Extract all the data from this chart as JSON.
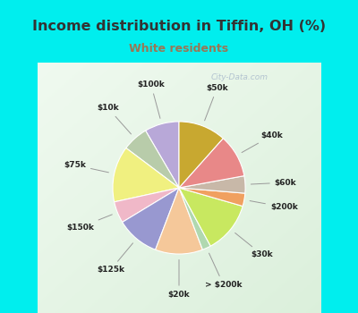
{
  "title": "Income distribution in Tiffin, OH (%)",
  "subtitle": "White residents",
  "title_color": "#333333",
  "subtitle_color": "#997755",
  "bg_cyan": "#00eeee",
  "bg_panel_color": "#d8ede0",
  "labels_cw": [
    "$100k",
    "$10k",
    "$75k",
    "$150k",
    "$125k",
    "$20k",
    "> $200k",
    "$30k",
    "$200k",
    "$60k",
    "$40k",
    "$50k"
  ],
  "values_cw": [
    8,
    6,
    13,
    5,
    10,
    11,
    2,
    12,
    3,
    4,
    10,
    11
  ],
  "colors_cw": [
    "#b8a8d8",
    "#b8ccaa",
    "#f0f080",
    "#f0b8c8",
    "#9898d0",
    "#f5c89a",
    "#b0d8b0",
    "#c8e860",
    "#f0a060",
    "#c8b8a8",
    "#e88888",
    "#c8a830"
  ],
  "watermark": "City-Data.com",
  "startangle": 90,
  "label_r": 1.32,
  "wedge_lw": 0.8
}
